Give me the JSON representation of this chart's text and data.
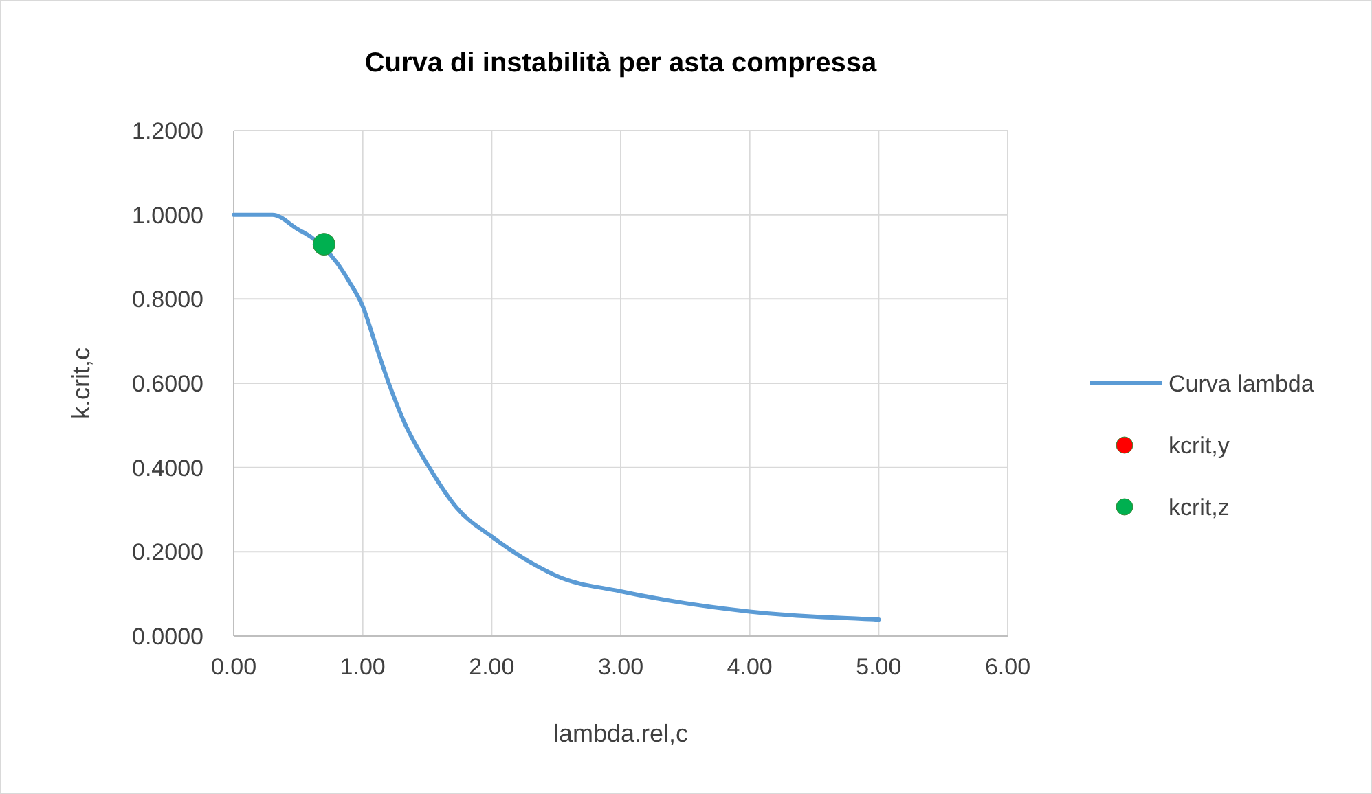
{
  "chart_data": {
    "type": "scatter",
    "title": "Curva di instabilità per asta compressa",
    "xlabel": "lambda.rel,c",
    "ylabel": "k.crit,c",
    "xlim": [
      0,
      6
    ],
    "xticks": [
      {
        "value": 0,
        "label": "0.00"
      },
      {
        "value": 1,
        "label": "1.00"
      },
      {
        "value": 2,
        "label": "2.00"
      },
      {
        "value": 3,
        "label": "3.00"
      },
      {
        "value": 4,
        "label": "4.00"
      },
      {
        "value": 5,
        "label": "5.00"
      },
      {
        "value": 6,
        "label": "6.00"
      }
    ],
    "ylim": [
      0,
      1.2
    ],
    "yticks": [
      {
        "value": 0,
        "label": "0.0000"
      },
      {
        "value": 0.2,
        "label": "0.2000"
      },
      {
        "value": 0.4,
        "label": "0.4000"
      },
      {
        "value": 0.6,
        "label": "0.6000"
      },
      {
        "value": 0.8,
        "label": "0.8000"
      },
      {
        "value": 1,
        "label": "1.0000"
      },
      {
        "value": 1.2,
        "label": "1.2000"
      }
    ],
    "grid": true,
    "legend": "right",
    "series": [
      {
        "name": "Curva lambda",
        "type": "line",
        "marker": "none",
        "color": "#5b9bd5",
        "x": [
          0,
          0.3,
          0.5,
          0.6,
          0.8,
          0.9,
          1.0,
          1.1,
          1.2,
          1.32,
          1.52,
          1.73,
          2.0,
          2.34,
          2.5,
          3.0,
          3.5,
          4.0,
          5.0
        ],
        "values": [
          1.0,
          1.0,
          0.965,
          0.947,
          0.886,
          0.839,
          0.783,
          0.692,
          0.602,
          0.509,
          0.398,
          0.304,
          0.236,
          0.168,
          0.143,
          0.106,
          0.078,
          0.058,
          0.039
        ]
      },
      {
        "name": "kcrit,y",
        "marker": "circle",
        "color": "#ff0000"
      },
      {
        "name": "kcrit,z",
        "marker": "circle",
        "color": "#00b050",
        "x": [
          0.7
        ],
        "values": [
          0.93
        ]
      }
    ]
  }
}
